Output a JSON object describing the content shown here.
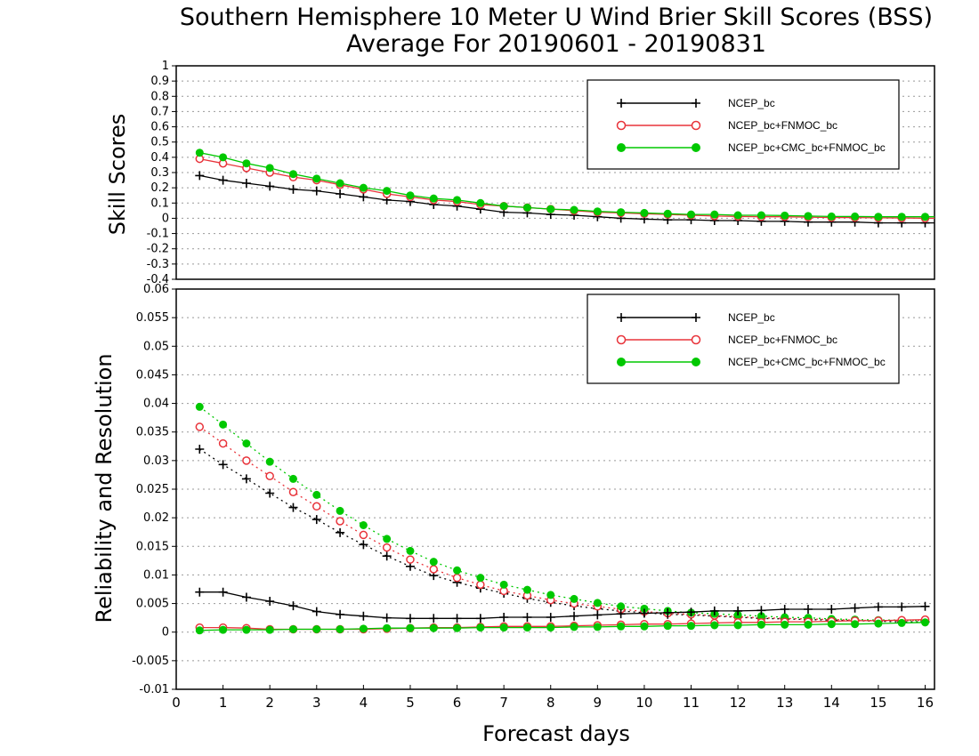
{
  "title_line1": "Southern Hemisphere 10 Meter U Wind Brier Skill Scores (BSS)",
  "title_line2": "Average For 20190601 - 20190831",
  "x_axis_label": "Forecast days",
  "colors": {
    "ncep": "#000000",
    "fnmoc": "#e8333a",
    "cmc": "#00c800"
  },
  "chart_data": [
    {
      "type": "line",
      "ylabel": "Skill Scores",
      "xlim": [
        0,
        16.2
      ],
      "ylim": [
        -0.4,
        1.0
      ],
      "yticks": [
        1,
        0.9,
        0.8,
        0.7,
        0.6,
        0.5,
        0.4,
        0.3,
        0.2,
        0.1,
        0,
        -0.1,
        -0.2,
        -0.3,
        -0.4
      ],
      "ytick_labels": [
        "1",
        "0.9",
        "0.8",
        "0.7",
        "0.6",
        "0.5",
        "0.4",
        "0.3",
        "0.2",
        "0.1",
        "0",
        "-0.1",
        "-0.2",
        "-0.3",
        "-0.4"
      ],
      "grid": true,
      "legend": "top-right",
      "x": [
        0.5,
        1,
        1.5,
        2,
        2.5,
        3,
        3.5,
        4,
        4.5,
        5,
        5.5,
        6,
        6.5,
        7,
        7.5,
        8,
        8.5,
        9,
        9.5,
        10,
        10.5,
        11,
        11.5,
        12,
        12.5,
        13,
        13.5,
        14,
        14.5,
        15,
        15.5,
        16,
        16.2
      ],
      "series": [
        {
          "name": "NCEP_bc",
          "color_key": "ncep",
          "marker": "plus",
          "line": "solid",
          "values": [
            0.28,
            0.25,
            0.23,
            0.21,
            0.19,
            0.18,
            0.16,
            0.14,
            0.12,
            0.11,
            0.09,
            0.08,
            0.06,
            0.04,
            0.035,
            0.025,
            0.02,
            0.01,
            0.0,
            -0.005,
            -0.01,
            -0.01,
            -0.015,
            -0.015,
            -0.02,
            -0.02,
            -0.025,
            -0.025,
            -0.025,
            -0.03,
            -0.03,
            -0.03,
            -0.03
          ]
        },
        {
          "name": "NCEP_bc+FNMOC_bc",
          "color_key": "fnmoc",
          "marker": "circle-open",
          "line": "solid",
          "values": [
            0.39,
            0.36,
            0.33,
            0.3,
            0.27,
            0.25,
            0.22,
            0.19,
            0.16,
            0.14,
            0.12,
            0.11,
            0.09,
            0.08,
            0.07,
            0.06,
            0.05,
            0.04,
            0.035,
            0.03,
            0.025,
            0.02,
            0.015,
            0.012,
            0.01,
            0.01,
            0.008,
            0.005,
            0.005,
            0.003,
            0.002,
            0.0,
            0.0
          ]
        },
        {
          "name": "NCEP_bc+CMC_bc+FNMOC_bc",
          "color_key": "cmc",
          "marker": "circle-filled",
          "line": "solid",
          "values": [
            0.43,
            0.4,
            0.36,
            0.33,
            0.29,
            0.26,
            0.23,
            0.2,
            0.18,
            0.15,
            0.13,
            0.12,
            0.1,
            0.08,
            0.07,
            0.06,
            0.055,
            0.045,
            0.04,
            0.035,
            0.03,
            0.025,
            0.025,
            0.02,
            0.02,
            0.018,
            0.015,
            0.012,
            0.012,
            0.01,
            0.01,
            0.01,
            0.01
          ]
        }
      ]
    },
    {
      "type": "line",
      "ylabel": "Reliability and Resolution",
      "xlabel": "Forecast days",
      "xlim": [
        0,
        16.2
      ],
      "xticks": [
        0,
        1,
        2,
        3,
        4,
        5,
        6,
        7,
        8,
        9,
        10,
        11,
        12,
        13,
        14,
        15,
        16
      ],
      "xtick_labels": [
        "0",
        "1",
        "2",
        "3",
        "4",
        "5",
        "6",
        "7",
        "8",
        "9",
        "10",
        "11",
        "12",
        "13",
        "14",
        "15",
        "16"
      ],
      "ylim": [
        -0.01,
        0.06
      ],
      "yticks": [
        0.06,
        0.055,
        0.05,
        0.045,
        0.04,
        0.035,
        0.03,
        0.025,
        0.02,
        0.015,
        0.01,
        0.005,
        0,
        -0.005,
        -0.01
      ],
      "ytick_labels": [
        "0.06",
        "0.055",
        "0.05",
        "0.045",
        "0.04",
        "0.035",
        "0.03",
        "0.025",
        "0.02",
        "0.015",
        "0.01",
        "0.005",
        "0",
        "-0.005",
        "-0.01"
      ],
      "grid": true,
      "legend": "top-right",
      "legend_entries": [
        {
          "name": "NCEP_bc",
          "color_key": "ncep",
          "marker": "plus"
        },
        {
          "name": "NCEP_bc+FNMOC_bc",
          "color_key": "fnmoc",
          "marker": "circle-open"
        },
        {
          "name": "NCEP_bc+CMC_bc+FNMOC_bc",
          "color_key": "cmc",
          "marker": "circle-filled"
        }
      ],
      "x": [
        0.5,
        1,
        1.5,
        2,
        2.5,
        3,
        3.5,
        4,
        4.5,
        5,
        5.5,
        6,
        6.5,
        7,
        7.5,
        8,
        8.5,
        9,
        9.5,
        10,
        10.5,
        11,
        11.5,
        12,
        12.5,
        13,
        13.5,
        14,
        14.5,
        15,
        15.5,
        16
      ],
      "series": [
        {
          "name": "NCEP_bc resolution",
          "color_key": "ncep",
          "marker": "plus",
          "line": "dotted",
          "values": [
            0.032,
            0.0293,
            0.0268,
            0.0243,
            0.0218,
            0.0197,
            0.0174,
            0.0153,
            0.0133,
            0.0115,
            0.0099,
            0.0087,
            0.0077,
            0.0068,
            0.0059,
            0.0052,
            0.0046,
            0.0041,
            0.0037,
            0.0034,
            0.0031,
            0.003,
            0.0028,
            0.0026,
            0.0024,
            0.0023,
            0.0022,
            0.0021,
            0.002,
            0.0019,
            0.0018,
            0.0018
          ]
        },
        {
          "name": "NCEP_bc+FNMOC_bc resolution",
          "color_key": "fnmoc",
          "marker": "circle-open",
          "line": "dotted",
          "values": [
            0.0359,
            0.033,
            0.03,
            0.0273,
            0.0245,
            0.022,
            0.0194,
            0.017,
            0.0148,
            0.0127,
            0.011,
            0.0095,
            0.0083,
            0.0072,
            0.0064,
            0.0056,
            0.005,
            0.0045,
            0.004,
            0.0036,
            0.0033,
            0.0031,
            0.0029,
            0.0027,
            0.0025,
            0.0024,
            0.0023,
            0.0022,
            0.0021,
            0.002,
            0.002,
            0.0021
          ]
        },
        {
          "name": "NCEP_bc+CMC_bc+FNMOC_bc resolution",
          "color_key": "cmc",
          "marker": "circle-filled",
          "line": "dotted",
          "values": [
            0.0394,
            0.0363,
            0.033,
            0.0298,
            0.0268,
            0.024,
            0.0212,
            0.0187,
            0.0163,
            0.0142,
            0.0123,
            0.0108,
            0.0095,
            0.0083,
            0.0074,
            0.0065,
            0.0058,
            0.0051,
            0.0045,
            0.0041,
            0.0037,
            0.0034,
            0.0032,
            0.003,
            0.0028,
            0.0026,
            0.0025,
            0.0023,
            0.0022,
            0.0021,
            0.0021,
            0.002
          ]
        },
        {
          "name": "NCEP_bc reliability",
          "color_key": "ncep",
          "marker": "plus",
          "line": "solid",
          "values": [
            0.007,
            0.007,
            0.0061,
            0.0054,
            0.0046,
            0.0036,
            0.0031,
            0.0028,
            0.0025,
            0.0024,
            0.0024,
            0.0024,
            0.0024,
            0.0026,
            0.0026,
            0.0026,
            0.0028,
            0.003,
            0.0032,
            0.0033,
            0.0034,
            0.0035,
            0.0037,
            0.0037,
            0.0038,
            0.004,
            0.004,
            0.004,
            0.0042,
            0.0044,
            0.0044,
            0.0045
          ]
        },
        {
          "name": "NCEP_bc+FNMOC_bc reliability",
          "color_key": "fnmoc",
          "marker": "circle-open",
          "line": "solid",
          "values": [
            0.0008,
            0.0008,
            0.0007,
            0.0005,
            0.0005,
            0.0005,
            0.0005,
            0.0005,
            0.0006,
            0.0007,
            0.0008,
            0.0008,
            0.0009,
            0.001,
            0.001,
            0.001,
            0.0011,
            0.0012,
            0.0013,
            0.0014,
            0.0014,
            0.0015,
            0.0016,
            0.0017,
            0.0017,
            0.0018,
            0.0018,
            0.0019,
            0.002,
            0.002,
            0.0021,
            0.0022
          ]
        },
        {
          "name": "NCEP_bc+CMC_bc+FNMOC_bc reliability",
          "color_key": "cmc",
          "marker": "circle-filled",
          "line": "solid",
          "values": [
            0.0003,
            0.0004,
            0.0004,
            0.0004,
            0.0005,
            0.0005,
            0.0005,
            0.0006,
            0.0007,
            0.0007,
            0.0007,
            0.0007,
            0.0008,
            0.0008,
            0.0008,
            0.0008,
            0.0009,
            0.0009,
            0.001,
            0.001,
            0.0011,
            0.0011,
            0.0012,
            0.0012,
            0.0013,
            0.0013,
            0.0013,
            0.0014,
            0.0014,
            0.0015,
            0.0016,
            0.0017
          ]
        }
      ]
    }
  ]
}
